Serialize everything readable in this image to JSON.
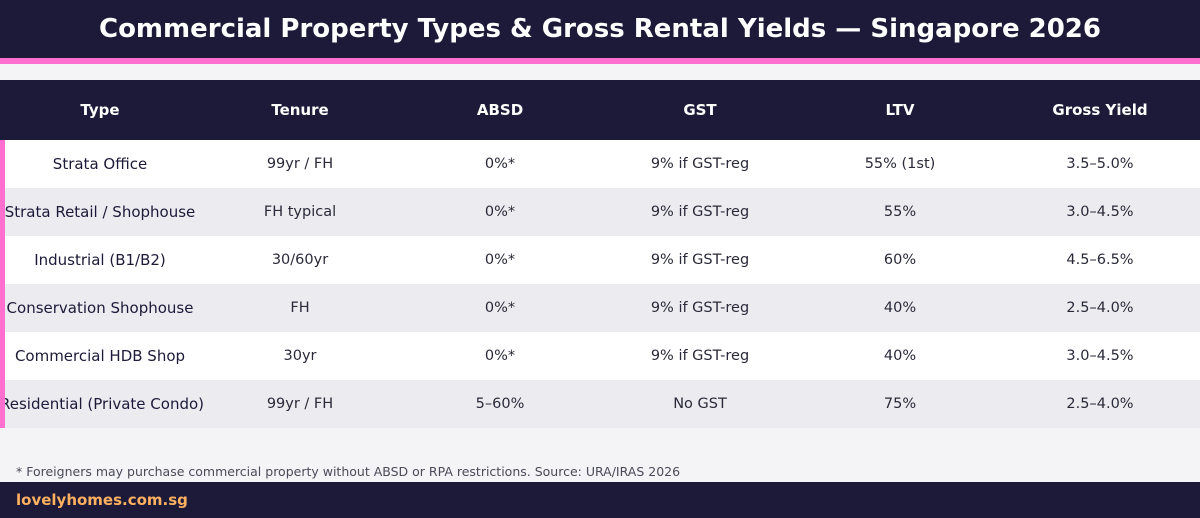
{
  "title": "Commercial Property Types & Gross Rental Yields — Singapore 2026",
  "colors": {
    "navy": "#1c1a38",
    "accent_pink": "#ff6fcf",
    "brand_orange": "#ffb060",
    "row_alt": "#ecebf0"
  },
  "chart_data": {
    "type": "table",
    "columns": [
      "Type",
      "Tenure",
      "ABSD",
      "GST",
      "LTV",
      "Gross Yield"
    ],
    "rows": [
      [
        "Strata Office",
        "99yr / FH",
        "0%*",
        "9% if GST-reg",
        "55% (1st)",
        "3.5–5.0%"
      ],
      [
        "Strata Retail / Shophouse",
        "FH typical",
        "0%*",
        "9% if GST-reg",
        "55%",
        "3.0–4.5%"
      ],
      [
        "Industrial (B1/B2)",
        "30/60yr",
        "0%*",
        "9% if GST-reg",
        "60%",
        "4.5–6.5%"
      ],
      [
        "Conservation Shophouse",
        "FH",
        "0%*",
        "9% if GST-reg",
        "40%",
        "2.5–4.0%"
      ],
      [
        "Commercial HDB Shop",
        "30yr",
        "0%*",
        "9% if GST-reg",
        "40%",
        "3.0–4.5%"
      ],
      [
        "Residential (Private Condo)",
        "99yr / FH",
        "5–60%",
        "No GST",
        "75%",
        "2.5–4.0%"
      ]
    ]
  },
  "footnote": "* Foreigners may purchase commercial property without ABSD or RPA restrictions. Source: URA/IRAS 2026",
  "brand": "lovelyhomes.com.sg"
}
